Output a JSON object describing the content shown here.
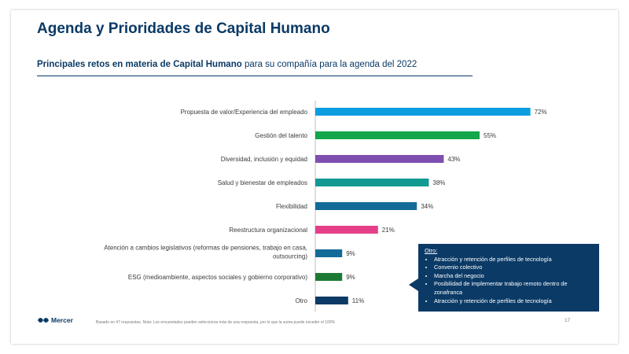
{
  "header": {
    "title": "Agenda y Prioridades de Capital Humano",
    "subtitle_strong": "Principales  retos en materia de Capital Humano",
    "subtitle_rest": " para su compañía para la agenda del 2022"
  },
  "chart_data": {
    "type": "bar",
    "orientation": "horizontal",
    "categories": [
      "Propuesta de valor/Experiencia del empleado",
      "Gestión del talento",
      "Diversidad, inclusión y equidad",
      "Salud y bienestar de empleados",
      "Flexibilidad",
      "Reestructura organizacional",
      "Atención a cambios legislativos (reformas de pensiones, trabajo en casa,\noutsourcing)",
      "ESG (medioambiente, aspectos sociales y gobierno corporativo)",
      "Otro"
    ],
    "values": [
      72,
      55,
      43,
      38,
      34,
      21,
      9,
      9,
      11
    ],
    "value_labels": [
      "72%",
      "55%",
      "43%",
      "38%",
      "34%",
      "21%",
      "9%",
      "9%",
      "11%"
    ],
    "colors": [
      "#0b9de0",
      "#13a64a",
      "#7f4fb0",
      "#129a92",
      "#136b97",
      "#e63f8a",
      "#136b97",
      "#1d7a35",
      "#0b3a66"
    ],
    "title": "",
    "xlabel": "",
    "ylabel": "",
    "xlim": [
      0,
      100
    ],
    "axis_color": "#bfbfbf"
  },
  "callout": {
    "title": "Otro:",
    "items": [
      "Atracción y retención de perfiles de tecnología",
      "Convenio colectivo",
      "Marcha del negocio",
      "Posibilidad de implementar trabajo remoto dentro de zonafranca",
      "Atracción y retención de perfiles de tecnología"
    ]
  },
  "footer": {
    "logo_text": "Mercer",
    "footnote": "Basado en 47 respuestas. Nota: Los encuestados pueden seleccionar más de una respuesta, por lo que la suma puede exceder el 100%",
    "page_number": "17"
  }
}
